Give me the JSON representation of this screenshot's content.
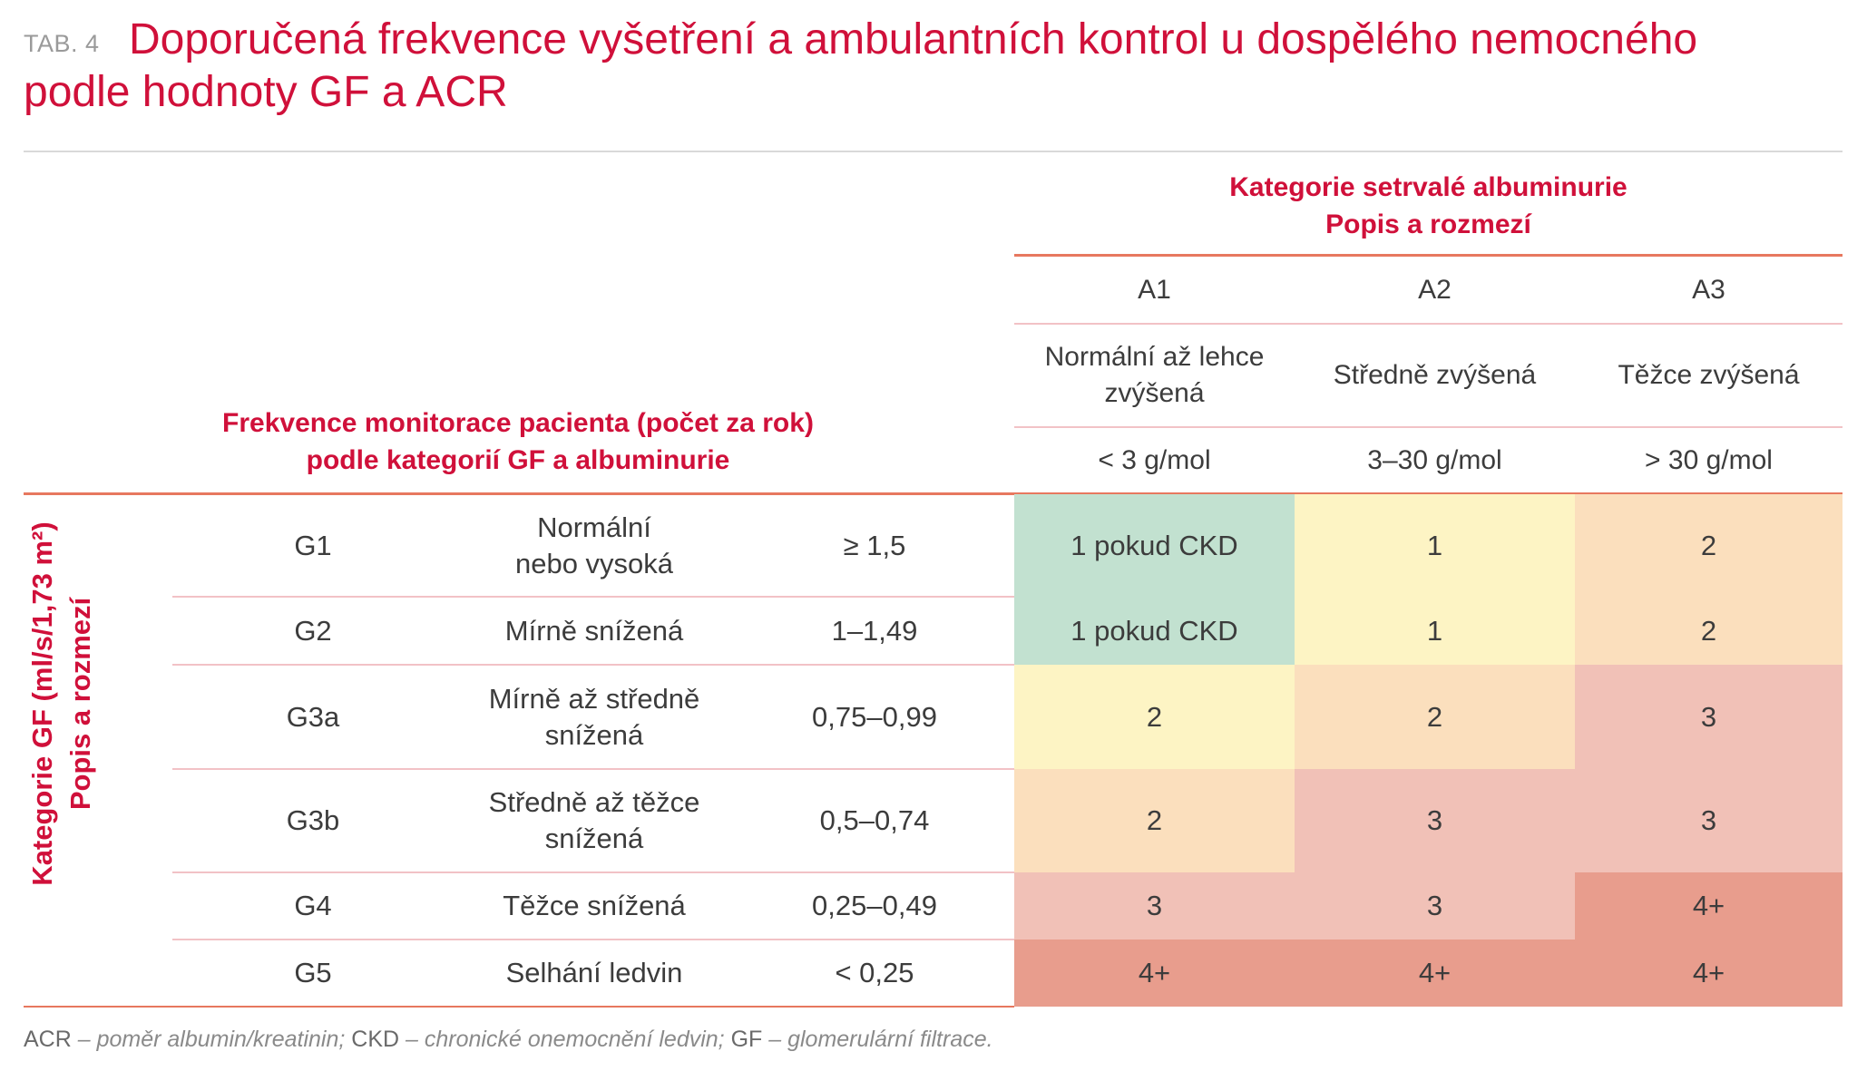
{
  "tab_label": "TAB. 4",
  "title_line1": "Doporučená frekvence vyšetření a ambulantních kontrol u dospělého nemocného",
  "title_line2": "podle hodnoty GF a ACR",
  "albumin_header_line1": "Kategorie setrvalé albuminurie",
  "albumin_header_line2": "Popis a rozmezí",
  "freq_header_line1": "Frekvence monitorace pacienta (počet za rok)",
  "freq_header_line2": "podle kategorií GF a albuminurie",
  "gf_axis_line1": "Kategorie GF (ml/s/1,73 m²)",
  "gf_axis_line2": "Popis a rozmezí",
  "columns": [
    {
      "code": "A1",
      "desc_line1": "Normální až lehce",
      "desc_line2": "zvýšená",
      "range": "< 3 g/mol"
    },
    {
      "code": "A2",
      "desc_line1": "Středně zvýšená",
      "desc_line2": "",
      "range": "3–30 g/mol"
    },
    {
      "code": "A3",
      "desc_line1": "Těžce zvýšená",
      "desc_line2": "",
      "range": "> 30 g/mol"
    }
  ],
  "rows": [
    {
      "code": "G1",
      "desc_line1": "Normální",
      "desc_line2": "nebo vysoká",
      "range": "≥ 1,5",
      "values": [
        "1 pokud CKD",
        "1",
        "2"
      ]
    },
    {
      "code": "G2",
      "desc_line1": "Mírně snížená",
      "desc_line2": "",
      "range": "1–1,49",
      "values": [
        "1 pokud CKD",
        "1",
        "2"
      ]
    },
    {
      "code": "G3a",
      "desc_line1": "Mírně až středně",
      "desc_line2": "snížená",
      "range": "0,75–0,99",
      "values": [
        "2",
        "2",
        "3"
      ]
    },
    {
      "code": "G3b",
      "desc_line1": "Středně až těžce",
      "desc_line2": "snížená",
      "range": "0,5–0,74",
      "values": [
        "2",
        "3",
        "3"
      ]
    },
    {
      "code": "G4",
      "desc_line1": "Těžce snížená",
      "desc_line2": "",
      "range": "0,25–0,49",
      "values": [
        "3",
        "3",
        "4+"
      ]
    },
    {
      "code": "G5",
      "desc_line1": "Selhání ledvin",
      "desc_line2": "",
      "range": "< 0,25",
      "values": [
        "4+",
        "4+",
        "4+"
      ]
    }
  ],
  "cell_colors": {
    "green": "#c2e1d0",
    "yellow": "#fdf4c4",
    "peach": "#fbdfbd",
    "pink": "#f1c1b7",
    "red": "#e89d8d"
  },
  "color_grid": [
    [
      "green",
      "yellow",
      "peach"
    ],
    [
      "green",
      "yellow",
      "peach"
    ],
    [
      "yellow",
      "peach",
      "pink"
    ],
    [
      "peach",
      "pink",
      "pink"
    ],
    [
      "pink",
      "pink",
      "red"
    ],
    [
      "red",
      "red",
      "red"
    ]
  ],
  "footnote": {
    "abbr1": "ACR",
    "desc1": " – poměr albumin/kreatinin; ",
    "abbr2": "CKD",
    "desc2": " – chronické onemocnění ledvin; ",
    "abbr3": "GF",
    "desc3": " – glomerulární filtrace."
  }
}
